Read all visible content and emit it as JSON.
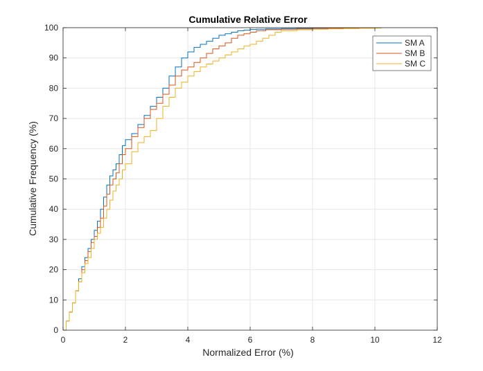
{
  "chart_data": {
    "type": "line",
    "title": "Cumulative Relative Error",
    "xlabel": "Normalized Error (%)",
    "ylabel": "Cumulative Frequency (%)",
    "xlim": [
      0,
      12
    ],
    "ylim": [
      0,
      100
    ],
    "xticks": [
      0,
      2,
      4,
      6,
      8,
      10,
      12
    ],
    "yticks": [
      0,
      10,
      20,
      30,
      40,
      50,
      60,
      70,
      80,
      90,
      100
    ],
    "grid": true,
    "legend_position": "top-right",
    "series": [
      {
        "name": "SM A",
        "color": "#0072BD",
        "x": [
          0,
          0.1,
          0.2,
          0.3,
          0.4,
          0.5,
          0.6,
          0.7,
          0.8,
          0.9,
          1.0,
          1.1,
          1.2,
          1.3,
          1.4,
          1.5,
          1.6,
          1.7,
          1.8,
          1.9,
          2.0,
          2.2,
          2.4,
          2.6,
          2.8,
          3.0,
          3.2,
          3.4,
          3.6,
          3.8,
          4.0,
          4.2,
          4.4,
          4.6,
          4.8,
          5.0,
          5.2,
          5.4,
          5.6,
          5.8,
          6.0,
          6.2,
          6.5,
          7.0,
          7.5,
          8.0,
          8.5,
          9.0,
          9.3
        ],
        "y": [
          0,
          3,
          6,
          9,
          13,
          17,
          21,
          24,
          27,
          30,
          33,
          36,
          40,
          44,
          48,
          51,
          53,
          55,
          58,
          61,
          63,
          65,
          68,
          71,
          74,
          77,
          80,
          84,
          87,
          90,
          92,
          93.5,
          94.5,
          95.5,
          96.5,
          97.5,
          98,
          98.5,
          99,
          99.2,
          99.4,
          99.5,
          99.6,
          99.7,
          99.8,
          99.85,
          99.9,
          99.95,
          100
        ]
      },
      {
        "name": "SM B",
        "color": "#D95319",
        "x": [
          0,
          0.1,
          0.2,
          0.3,
          0.4,
          0.5,
          0.6,
          0.7,
          0.8,
          0.9,
          1.0,
          1.1,
          1.2,
          1.3,
          1.4,
          1.5,
          1.6,
          1.7,
          1.8,
          1.9,
          2.0,
          2.2,
          2.4,
          2.6,
          2.8,
          3.0,
          3.2,
          3.4,
          3.6,
          3.8,
          4.0,
          4.2,
          4.4,
          4.6,
          4.8,
          5.0,
          5.2,
          5.4,
          5.6,
          5.8,
          6.0,
          6.2,
          6.5,
          7.0,
          7.5,
          8.0,
          8.5,
          9.0,
          9.5,
          10.0
        ],
        "y": [
          0,
          3,
          6,
          9,
          13,
          16,
          20,
          23,
          26,
          29,
          31,
          34,
          37,
          41,
          45,
          48,
          50,
          52,
          55,
          58,
          60,
          64,
          67,
          70,
          73,
          75,
          78,
          81,
          84,
          86,
          87,
          88.5,
          90,
          91.5,
          93,
          94,
          95,
          96.5,
          97.5,
          98,
          98.5,
          99,
          99.3,
          99.5,
          99.6,
          99.7,
          99.8,
          99.9,
          99.95,
          100
        ]
      },
      {
        "name": "SM C",
        "color": "#EDB120",
        "x": [
          0,
          0.1,
          0.2,
          0.3,
          0.4,
          0.5,
          0.6,
          0.7,
          0.8,
          0.9,
          1.0,
          1.1,
          1.2,
          1.3,
          1.4,
          1.5,
          1.6,
          1.7,
          1.8,
          1.9,
          2.0,
          2.2,
          2.4,
          2.6,
          2.8,
          3.0,
          3.2,
          3.4,
          3.6,
          3.8,
          4.0,
          4.2,
          4.4,
          4.6,
          4.8,
          5.0,
          5.2,
          5.4,
          5.6,
          5.8,
          6.0,
          6.2,
          6.4,
          6.6,
          6.8,
          7.0,
          7.5,
          8.0,
          8.5,
          9.0,
          9.5,
          10.0,
          10.2
        ],
        "y": [
          0,
          3,
          6,
          9,
          13,
          16,
          19,
          22,
          24,
          27,
          30,
          32,
          34,
          37,
          40,
          43,
          46,
          48,
          50,
          53,
          55,
          59,
          62,
          64,
          66,
          70,
          74,
          77,
          80,
          82,
          84,
          85.5,
          87,
          88,
          89,
          90,
          91,
          92,
          93,
          94,
          94.5,
          95.5,
          96.5,
          97.5,
          98.5,
          99,
          99.3,
          99.5,
          99.6,
          99.7,
          99.8,
          99.9,
          100
        ]
      }
    ]
  }
}
